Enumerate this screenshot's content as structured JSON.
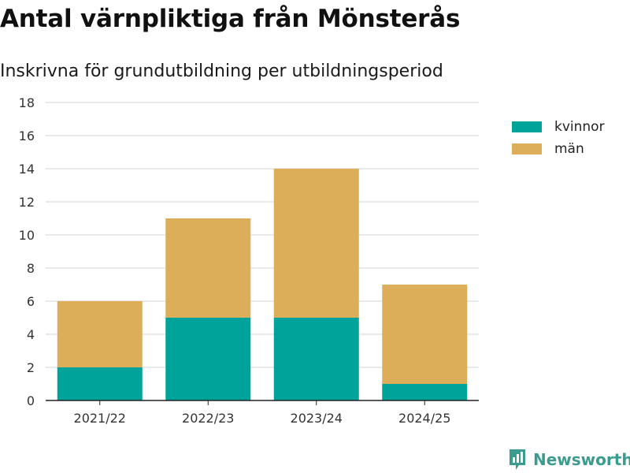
{
  "title": "Antal värnpliktiga från Mönsterås",
  "subtitle": "Inskrivna för grundutbildning per utbildningsperiod",
  "brand": {
    "name": "Newsworthy",
    "icon": "newsworthy-logo-icon"
  },
  "colors": {
    "kvinnor": "#00a39a",
    "man": "#dcae5a",
    "grid": "#e3e3e3",
    "axis": "#222222"
  },
  "chart_data": {
    "type": "bar",
    "stacked": true,
    "title": "Antal värnpliktiga från Mönsterås",
    "subtitle": "Inskrivna för grundutbildning per utbildningsperiod",
    "categories": [
      "2021/22",
      "2022/23",
      "2023/24",
      "2024/25"
    ],
    "series": [
      {
        "name": "kvinnor",
        "values": [
          2,
          5,
          5,
          1
        ]
      },
      {
        "name": "män",
        "values": [
          4,
          6,
          9,
          6
        ]
      }
    ],
    "ylim": [
      0,
      18
    ],
    "yticks": [
      0,
      2,
      4,
      6,
      8,
      10,
      12,
      14,
      16,
      18
    ],
    "grid": true,
    "legend": "right"
  }
}
